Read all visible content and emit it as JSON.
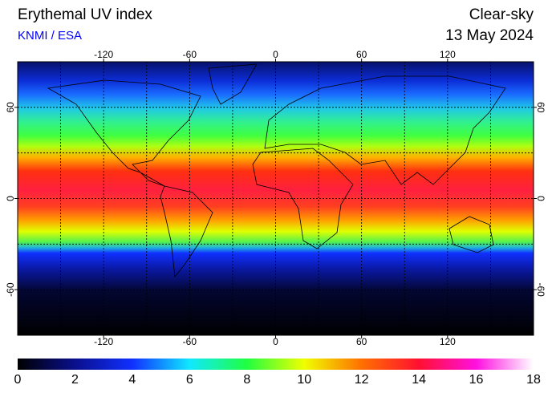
{
  "title": "Erythemal UV index",
  "source": "KNMI / ESA",
  "condition": "Clear-sky",
  "date": "13 May 2024",
  "map": {
    "lon_range": [
      -180,
      180
    ],
    "lat_range": [
      -90,
      90
    ],
    "lon_ticks": [
      -120,
      -60,
      0,
      60,
      120
    ],
    "lat_ticks": [
      60,
      0,
      -60
    ],
    "grid_step": 30
  },
  "colorbar": {
    "range": [
      0,
      18
    ],
    "ticks": [
      0,
      2,
      4,
      6,
      8,
      10,
      12,
      14,
      16,
      18
    ],
    "colors": [
      "#000000",
      "#0a0f8c",
      "#1030ff",
      "#10e8ff",
      "#20ff40",
      "#f0ff00",
      "#ff7000",
      "#ff1030",
      "#ff10e0",
      "#ffffff"
    ]
  }
}
